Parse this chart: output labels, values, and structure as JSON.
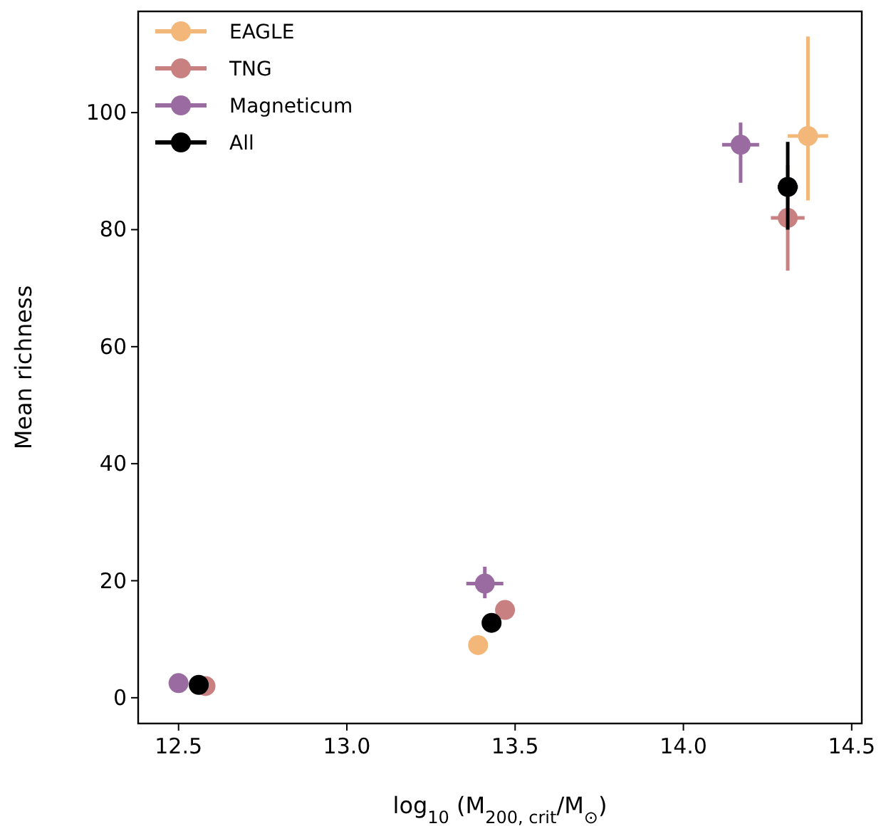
{
  "chart_data": {
    "type": "scatter",
    "xlabel": "log$_{10}$ (M$_{200, crit}$/M$_{⊙}$)",
    "ylabel": "Mean richness",
    "xlim": [
      12.38,
      14.53
    ],
    "ylim": [
      -4.4,
      117.3
    ],
    "xticks": [
      12.5,
      {
        "value": 13,
        "label": "13.0"
      },
      13.5,
      {
        "value": 14,
        "label": "14.0"
      },
      14.5
    ],
    "yticks": [
      0,
      20,
      40,
      60,
      80,
      100
    ],
    "legend": "top left",
    "marker": "circle",
    "grid": false,
    "series": [
      {
        "name": "EAGLE",
        "color": "#f3b77a",
        "x": [
          13.39,
          14.37
        ],
        "values": [
          9,
          96
        ],
        "errors": [
          null,
          [
            85,
            113
          ]
        ],
        "xerrors": [
          null,
          0.06
        ]
      },
      {
        "name": "TNG",
        "color": "#c98080",
        "x": [
          12.58,
          13.47,
          14.31
        ],
        "values": [
          2,
          15,
          82
        ],
        "errors": [
          null,
          null,
          [
            73,
            91
          ]
        ],
        "xerrors": [
          null,
          null,
          0.05
        ]
      },
      {
        "name": "Magneticum",
        "color": "#9a6ba0",
        "x": [
          12.5,
          13.41,
          14.17
        ],
        "values": [
          2.5,
          19.5,
          94.5
        ],
        "errors": [
          null,
          [
            17,
            22.4
          ],
          [
            88,
            98.3
          ]
        ],
        "xerrors": [
          null,
          0.055,
          0.055
        ]
      },
      {
        "name": "All",
        "color": "#000000",
        "x": [
          12.56,
          13.43,
          14.31
        ],
        "values": [
          2.2,
          12.8,
          87.3
        ],
        "errors": [
          null,
          null,
          [
            80,
            95
          ]
        ],
        "xerrors": [
          null,
          null,
          0.03
        ]
      }
    ]
  }
}
